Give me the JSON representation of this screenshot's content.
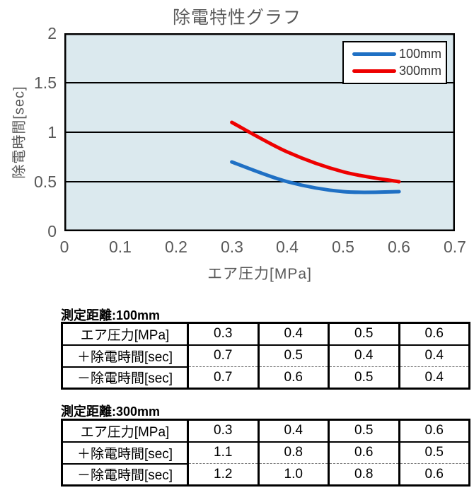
{
  "chart": {
    "title": "除電特性グラフ",
    "x_axis": {
      "label": "エア圧力[MPa]",
      "ticks": [
        "0",
        "0.1",
        "0.2",
        "0.3",
        "0.4",
        "0.5",
        "0.6",
        "0.7"
      ]
    },
    "y_axis": {
      "label": "除電時間[sec]",
      "ticks": [
        "2",
        "1.5",
        "1",
        "0.5",
        "0"
      ]
    },
    "colors": {
      "plot_bg": "#dbe9ee",
      "grid": "#000000",
      "frame": "#000000",
      "text": "#595959",
      "series_100mm": "#1f70c4",
      "series_300mm": "#ee0000"
    }
  },
  "chart_data": {
    "type": "line",
    "x": [
      0.3,
      0.4,
      0.5,
      0.6
    ],
    "series": [
      {
        "name": "100mm",
        "color": "#1f70c4",
        "values": [
          0.7,
          0.5,
          0.4,
          0.4
        ]
      },
      {
        "name": "300mm",
        "color": "#ee0000",
        "values": [
          1.1,
          0.8,
          0.6,
          0.5
        ]
      }
    ],
    "title": "除電特性グラフ",
    "xlabel": "エア圧力[MPa]",
    "ylabel": "除電時間[sec]",
    "xlim": [
      0,
      0.7
    ],
    "ylim": [
      0,
      2
    ],
    "x_tick_step": 0.1,
    "y_tick_step": 0.5,
    "grid": "horizontal",
    "legend_position": "top-right",
    "smooth": true
  },
  "tables": [
    {
      "title": "測定距離:100mm",
      "rows": [
        {
          "label": "エア圧力[MPa]",
          "values": [
            "0.3",
            "0.4",
            "0.5",
            "0.6"
          ]
        },
        {
          "label": "＋除電時間[sec]",
          "values": [
            "0.7",
            "0.5",
            "0.4",
            "0.4"
          ]
        },
        {
          "label": "－除電時間[sec]",
          "values": [
            "0.7",
            "0.6",
            "0.5",
            "0.4"
          ]
        }
      ]
    },
    {
      "title": "測定距離:300mm",
      "rows": [
        {
          "label": "エア圧力[MPa]",
          "values": [
            "0.3",
            "0.4",
            "0.5",
            "0.6"
          ]
        },
        {
          "label": "＋除電時間[sec]",
          "values": [
            "1.1",
            "0.8",
            "0.6",
            "0.5"
          ]
        },
        {
          "label": "－除電時間[sec]",
          "values": [
            "1.2",
            "1.0",
            "0.8",
            "0.6"
          ]
        }
      ]
    }
  ]
}
